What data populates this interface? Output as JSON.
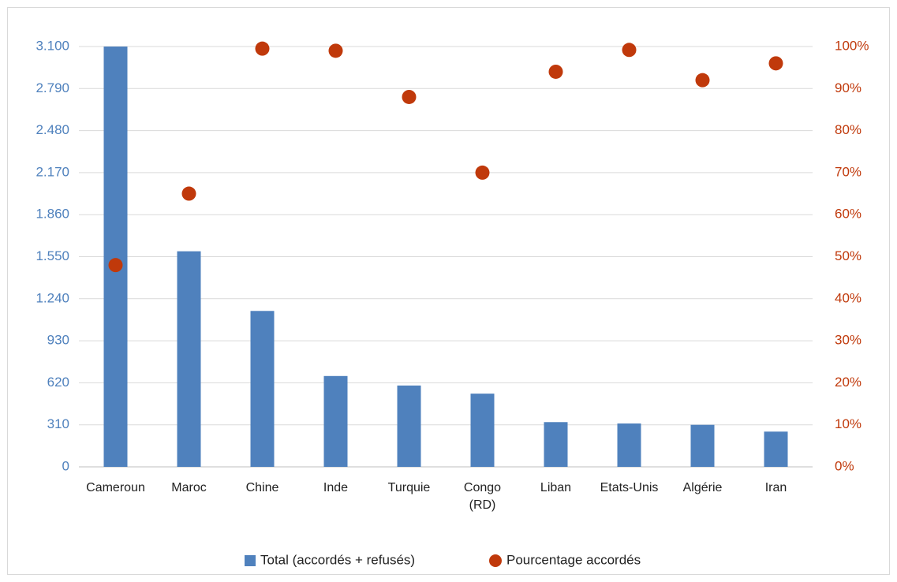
{
  "chart_data": {
    "type": "bar",
    "categories": [
      "Cameroun",
      "Maroc",
      "Chine",
      "Inde",
      "Turquie",
      "Congo (RD)",
      "Liban",
      "Etats-Unis",
      "Algérie",
      "Iran"
    ],
    "category_lines": [
      [
        "Cameroun"
      ],
      [
        "Maroc"
      ],
      [
        "Chine"
      ],
      [
        "Inde"
      ],
      [
        "Turquie"
      ],
      [
        "Congo",
        "(RD)"
      ],
      [
        "Liban"
      ],
      [
        "Etats-Unis"
      ],
      [
        "Algérie"
      ],
      [
        "Iran"
      ]
    ],
    "series": [
      {
        "name": "Total (accordés + refusés)",
        "type": "bar",
        "axis": "left",
        "color": "#4f81bd",
        "values": [
          3100,
          1590,
          1150,
          670,
          600,
          540,
          330,
          320,
          310,
          260
        ]
      },
      {
        "name": "Pourcentage accordés",
        "type": "scatter",
        "axis": "right",
        "color": "#c0390b",
        "values": [
          48,
          65,
          99.5,
          99,
          88,
          70,
          94,
          99.2,
          92,
          96
        ]
      }
    ],
    "y_left": {
      "ylim": [
        0,
        3100
      ],
      "ticks": [
        0,
        310,
        620,
        930,
        1240,
        1550,
        1860,
        2170,
        2480,
        2790,
        3100
      ],
      "tick_labels": [
        "0",
        "310",
        "620",
        "930",
        "1.240",
        "1.550",
        "1.860",
        "2.170",
        "2.480",
        "2.790",
        "3.100"
      ],
      "color": "#4f81bd"
    },
    "y_right": {
      "ylim": [
        0,
        100
      ],
      "ticks": [
        0,
        10,
        20,
        30,
        40,
        50,
        60,
        70,
        80,
        90,
        100
      ],
      "tick_labels": [
        "0%",
        "10%",
        "20%",
        "30%",
        "40%",
        "50%",
        "60%",
        "70%",
        "80%",
        "90%",
        "100%"
      ],
      "color": "#c0390b"
    },
    "title": "",
    "xlabel": "",
    "ylabel": "",
    "grid": true,
    "legend": "bottom"
  }
}
